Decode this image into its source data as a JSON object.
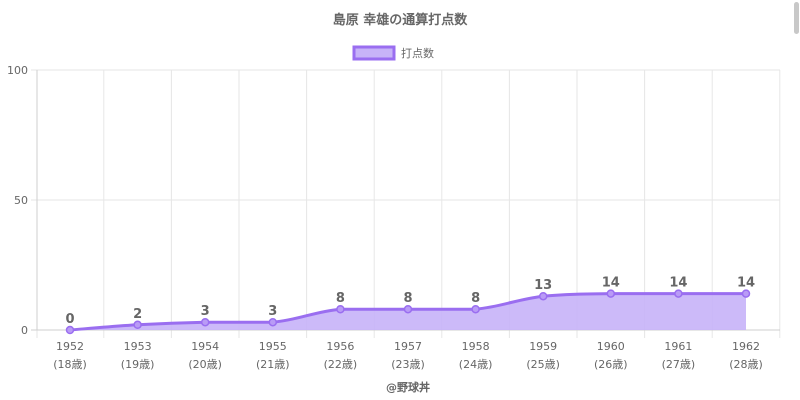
{
  "chart_data": {
    "type": "area",
    "title": "島原 幸雄の通算打点数",
    "legend": {
      "label": "打点数",
      "position": "top"
    },
    "categories": [
      "1952",
      "1953",
      "1954",
      "1955",
      "1956",
      "1957",
      "1958",
      "1959",
      "1960",
      "1961",
      "1962"
    ],
    "sublabels": [
      "(18歳)",
      "(19歳)",
      "(20歳)",
      "(21歳)",
      "(22歳)",
      "(23歳)",
      "(24歳)",
      "(25歳)",
      "(26歳)",
      "(27歳)",
      "(28歳)"
    ],
    "series": [
      {
        "name": "打点数",
        "values": [
          0,
          2,
          3,
          3,
          8,
          8,
          8,
          13,
          14,
          14,
          14
        ]
      }
    ],
    "ylim": [
      0,
      100
    ],
    "yticks": [
      0,
      50,
      100
    ],
    "grid": true,
    "data_labels": true,
    "footer": "@野球丼",
    "colors": {
      "line": "#9a6ef0",
      "fill": "#c7b3f8",
      "grid": "#e6e6e6",
      "text": "#666666"
    }
  }
}
